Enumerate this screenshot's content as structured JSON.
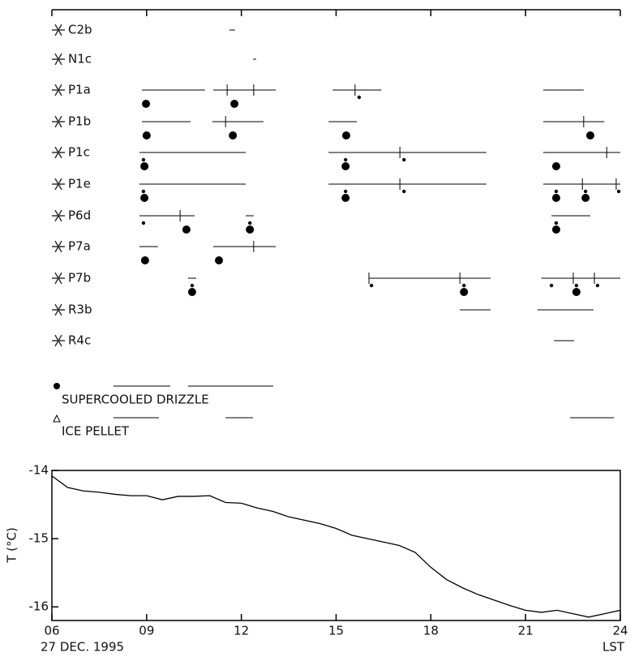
{
  "chart_data": [
    {
      "type": "timeline",
      "xlim": [
        6,
        24
      ],
      "xticks": [
        6,
        9,
        12,
        15,
        18,
        21,
        24
      ],
      "rows": [
        {
          "label": "C2b",
          "segments": [
            [
              11.62,
              11.8
            ]
          ],
          "ticks": [],
          "small_dots": [],
          "large_dots": []
        },
        {
          "label": "N1c",
          "segments": [
            [
              12.37,
              12.47
            ]
          ],
          "ticks": [],
          "small_dots": [],
          "large_dots": []
        },
        {
          "label": "P1a",
          "segments": [
            [
              8.85,
              10.85
            ],
            [
              11.11,
              13.09
            ],
            [
              14.89,
              16.43
            ],
            [
              21.56,
              22.84
            ]
          ],
          "ticks": [
            11.55,
            12.39,
            15.6
          ],
          "small_dots": [
            15.73
          ],
          "large_dots": [
            8.98,
            11.78
          ]
        },
        {
          "label": "P1b",
          "segments": [
            [
              8.85,
              10.39
            ],
            [
              11.08,
              12.7
            ],
            [
              14.76,
              15.66
            ],
            [
              21.56,
              23.49
            ]
          ],
          "ticks": [
            11.5,
            22.84
          ],
          "small_dots": [],
          "large_dots": [
            9.0,
            11.73,
            15.32,
            23.05
          ]
        },
        {
          "label": "P1c",
          "segments": [
            [
              8.77,
              12.14
            ],
            [
              14.76,
              19.76
            ],
            [
              21.56,
              24
            ]
          ],
          "ticks": [
            17.02,
            23.57
          ],
          "small_dots": [
            8.9,
            15.3,
            17.15
          ],
          "large_dots": [
            8.93,
            15.3,
            21.97
          ]
        },
        {
          "label": "P1e",
          "segments": [
            [
              8.77,
              12.14
            ],
            [
              14.76,
              19.76
            ],
            [
              21.56,
              24
            ]
          ],
          "ticks": [
            17.02,
            22.8,
            23.87
          ],
          "small_dots": [
            8.9,
            15.3,
            17.15,
            21.97,
            22.9,
            23.95
          ],
          "large_dots": [
            8.93,
            15.3,
            21.97,
            22.9
          ]
        },
        {
          "label": "P6d",
          "segments": [
            [
              8.77,
              10.52
            ],
            [
              12.14,
              12.39
            ],
            [
              21.82,
              23.05
            ]
          ],
          "ticks": [
            10.06
          ],
          "small_dots": [
            8.9,
            12.27,
            21.97
          ],
          "large_dots": [
            10.26,
            12.27,
            21.97
          ]
        },
        {
          "label": "P7a",
          "segments": [
            [
              8.77,
              9.36
            ],
            [
              11.11,
              13.09
            ]
          ],
          "ticks": [
            12.39
          ],
          "small_dots": [],
          "large_dots": [
            8.95,
            11.29
          ]
        },
        {
          "label": "P7b",
          "segments": [
            [
              10.31,
              10.57
            ],
            [
              16.04,
              19.89
            ],
            [
              21.5,
              24
            ]
          ],
          "ticks": [
            16.04,
            18.92,
            22.51,
            23.18
          ],
          "small_dots": [
            10.44,
            16.12,
            19.05,
            21.82,
            22.61,
            23.28
          ],
          "large_dots": [
            10.44,
            19.05,
            22.61
          ]
        },
        {
          "label": "R3b",
          "segments": [
            [
              18.92,
              19.89
            ],
            [
              21.38,
              23.15
            ]
          ],
          "ticks": [],
          "small_dots": [],
          "large_dots": []
        },
        {
          "label": "R4c",
          "segments": [
            [
              21.9,
              22.54
            ]
          ],
          "ticks": [],
          "small_dots": [],
          "large_dots": []
        },
        {
          "label": "SUPERCOOLED DRIZZLE",
          "segments": [
            [
              7.95,
              9.75
            ],
            [
              10.31,
              13.01
            ]
          ],
          "ticks": [],
          "small_dots": [],
          "large_dots": []
        },
        {
          "label": "ICE PELLET",
          "segments": [
            [
              7.95,
              9.39
            ],
            [
              11.5,
              12.37
            ],
            [
              22.41,
              23.8
            ]
          ],
          "ticks": [],
          "small_dots": [],
          "large_dots": []
        }
      ]
    },
    {
      "type": "line",
      "y_label": "T (°C)",
      "x_label": "LST",
      "date": "27 DEC. 1995",
      "xlim": [
        6,
        24
      ],
      "ylim": [
        -16.2,
        -14
      ],
      "xticks": [
        {
          "value": 6,
          "label": "06"
        },
        {
          "value": 9,
          "label": "09"
        },
        {
          "value": 12,
          "label": "12"
        },
        {
          "value": 15,
          "label": "15"
        },
        {
          "value": 18,
          "label": "18"
        },
        {
          "value": 21,
          "label": "21"
        },
        {
          "value": 24,
          "label": "24"
        }
      ],
      "yticks": [
        -14,
        -15,
        -16
      ],
      "color": "#000000",
      "x": [
        6,
        6.5,
        7,
        7.5,
        8,
        8.5,
        9,
        9.5,
        10,
        10.5,
        11,
        11.5,
        12,
        12.5,
        13,
        13.5,
        14,
        14.5,
        15,
        15.5,
        16,
        16.5,
        17,
        17.5,
        18,
        18.5,
        19,
        19.5,
        20,
        20.5,
        21,
        21.5,
        22,
        22.5,
        23,
        23.5,
        24
      ],
      "values": [
        -14.08,
        -14.25,
        -14.3,
        -14.32,
        -14.35,
        -14.37,
        -14.37,
        -14.43,
        -14.38,
        -14.38,
        -14.37,
        -14.47,
        -14.48,
        -14.55,
        -14.6,
        -14.68,
        -14.73,
        -14.78,
        -14.85,
        -14.95,
        -15.0,
        -15.05,
        -15.1,
        -15.2,
        -15.42,
        -15.6,
        -15.72,
        -15.82,
        -15.9,
        -15.98,
        -16.05,
        -16.08,
        -16.05,
        -16.1,
        -16.15,
        -16.1,
        -16.05
      ]
    }
  ]
}
